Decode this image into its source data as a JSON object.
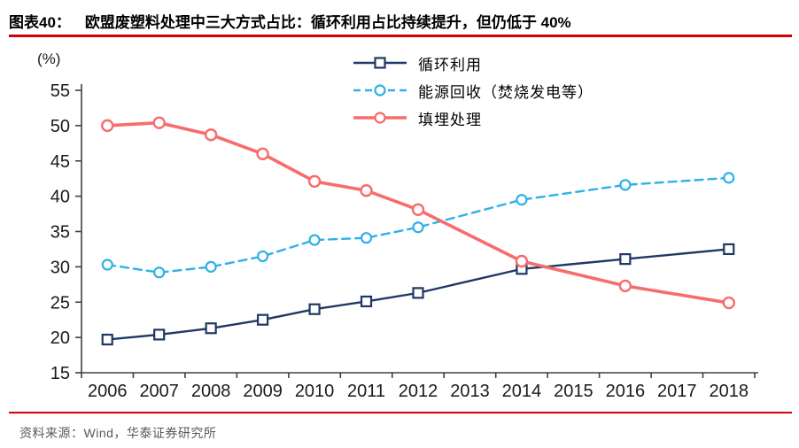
{
  "header": {
    "figure_label": "图表40：",
    "title": "欧盟废塑料处理中三大方式占比：循环利用占比持续提升，但仍低于 40%"
  },
  "footer": {
    "source_text": "资料来源：Wind，华泰证券研究所"
  },
  "colors": {
    "rule_red": "#d40000",
    "axis": "#404040",
    "tick_text": "#1a1a1a",
    "recycling": "#1F3864",
    "energy_recovery": "#2EB1E8",
    "landfill": "#F76C6C"
  },
  "chart_data": {
    "type": "line",
    "title": "欧盟废塑料处理中三大方式占比",
    "y_unit_label": "(%)",
    "xlabel": "",
    "ylabel": "(%)",
    "x_categories": [
      "2006",
      "2007",
      "2008",
      "2009",
      "2010",
      "2011",
      "2012",
      "2013",
      "2014",
      "2015",
      "2016",
      "2017",
      "2018"
    ],
    "ylim": [
      15,
      55
    ],
    "ytick_step": 5,
    "grid": false,
    "legend_position": "top-center",
    "series": [
      {
        "name": "循环利用",
        "color": "#1F3864",
        "line_style": "solid",
        "marker": "square",
        "line_width": 2.4,
        "x": [
          2006,
          2007,
          2008,
          2009,
          2010,
          2011,
          2012,
          2014,
          2016,
          2018
        ],
        "values": [
          19.7,
          20.4,
          21.3,
          22.5,
          24.0,
          25.1,
          26.3,
          29.7,
          31.1,
          32.5
        ]
      },
      {
        "name": "能源回收（焚烧发电等）",
        "color": "#2EB1E8",
        "line_style": "dashed",
        "marker": "circle",
        "line_width": 2.4,
        "x": [
          2006,
          2007,
          2008,
          2009,
          2010,
          2011,
          2012,
          2014,
          2016,
          2018
        ],
        "values": [
          30.3,
          29.2,
          30.0,
          31.5,
          33.8,
          34.1,
          35.6,
          39.5,
          41.6,
          42.6
        ]
      },
      {
        "name": "填埋处理",
        "color": "#F76C6C",
        "line_style": "solid",
        "marker": "circle",
        "line_width": 3.6,
        "x": [
          2006,
          2007,
          2008,
          2009,
          2010,
          2011,
          2012,
          2014,
          2016,
          2018
        ],
        "values": [
          50.0,
          50.4,
          48.7,
          46.0,
          42.1,
          40.8,
          38.1,
          30.8,
          27.3,
          24.9
        ]
      }
    ]
  }
}
